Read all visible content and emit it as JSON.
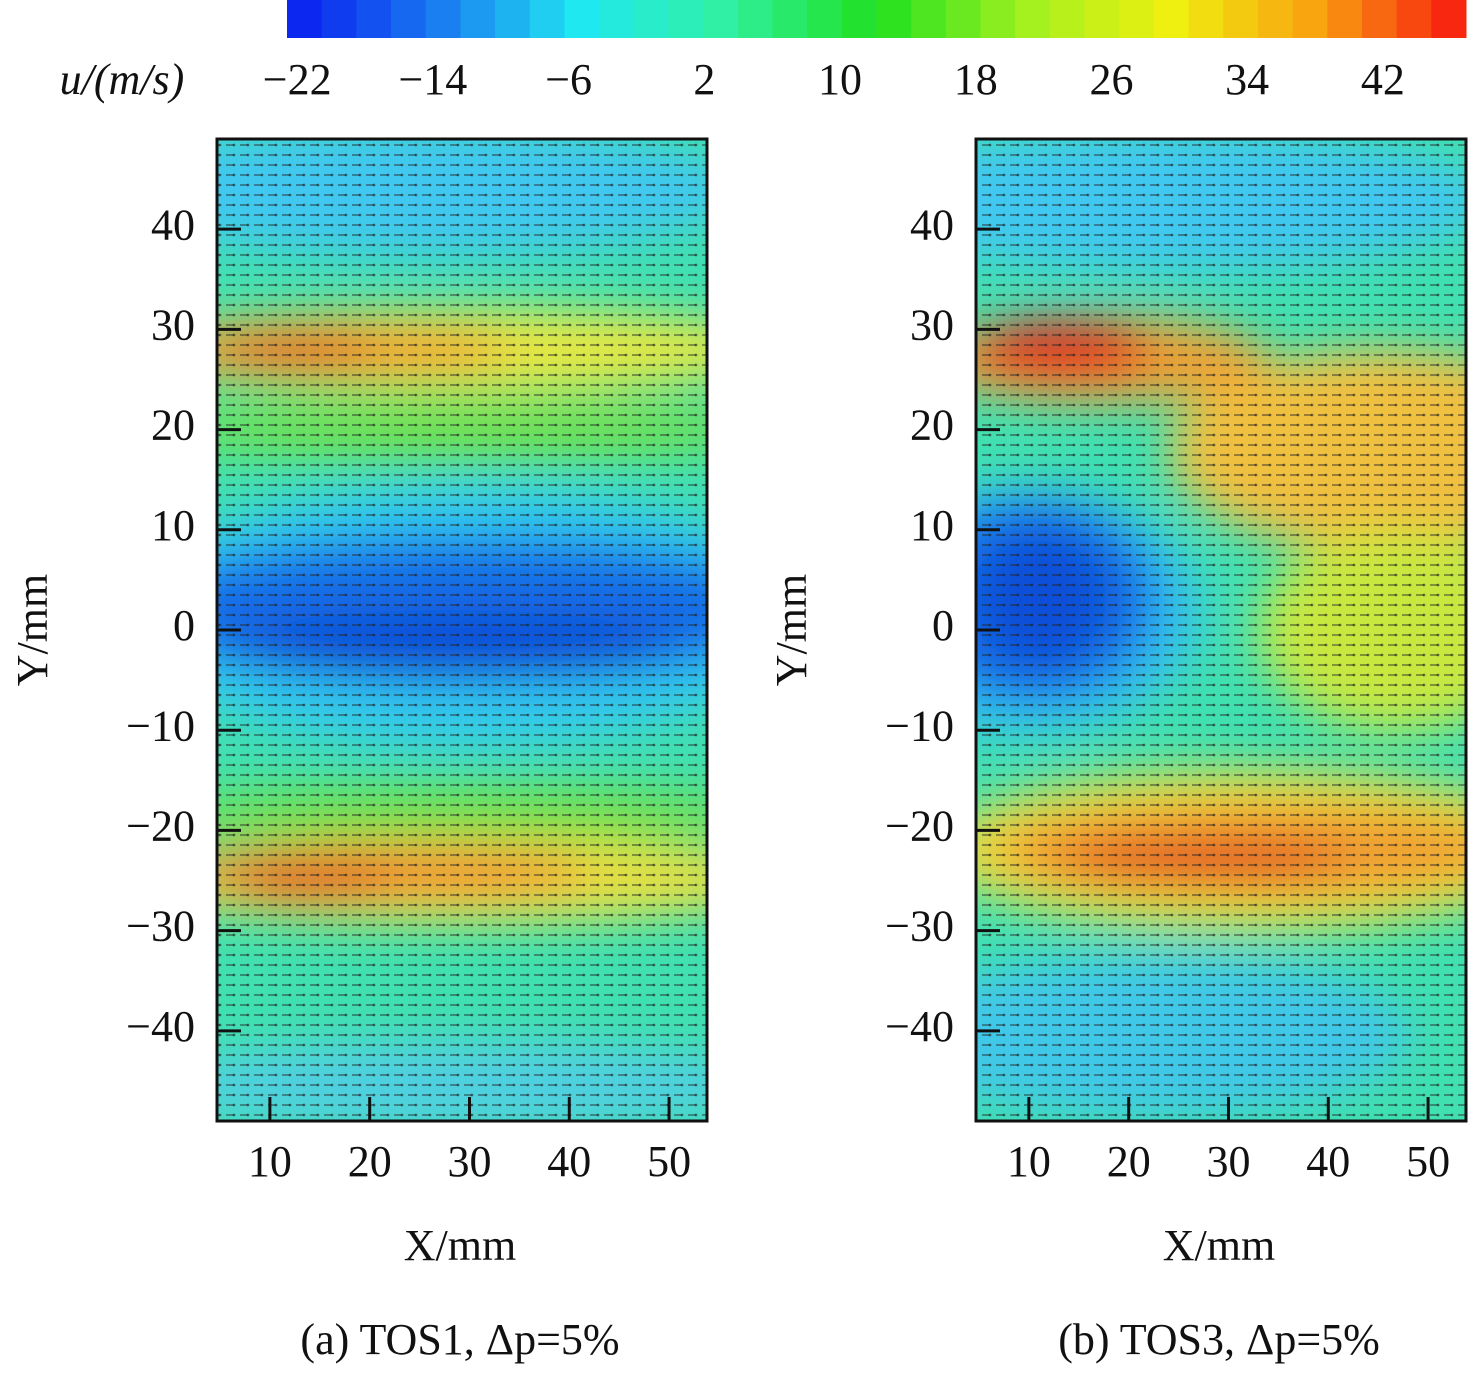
{
  "chart_data": {
    "type": "contour",
    "colorbar": {
      "label": "u/(m/s)",
      "clim": [
        -22.6,
        46.9
      ],
      "ticks": [
        {
          "value": -22,
          "label": "−22"
        },
        {
          "value": -14,
          "label": "−14"
        },
        {
          "value": -6,
          "label": "−6"
        },
        2,
        10,
        18,
        26,
        34,
        42
      ],
      "colormap": [
        "#0a1cf0",
        "#1a78f0",
        "#20e8f0",
        "#30f0a0",
        "#20e020",
        "#a0f020",
        "#f0f010",
        "#f8a010",
        "#f81810"
      ]
    },
    "panels": [
      {
        "caption": "(a) TOS1, Δp=5%",
        "xlabel": "X/mm",
        "ylabel": "Y/mm",
        "xlim": [
          4.7,
          53.8
        ],
        "ylim": [
          -49,
          49
        ],
        "xticks": [
          10,
          20,
          30,
          40,
          50
        ],
        "yticks": [
          {
            "value": -40,
            "label": "−40"
          },
          {
            "value": -30,
            "label": "−30"
          },
          {
            "value": -20,
            "label": "−20"
          },
          {
            "value": -10,
            "label": "−10"
          },
          0,
          10,
          20,
          30,
          40
        ]
      },
      {
        "caption": "(b) TOS3, Δp=5%",
        "xlabel": "X/mm",
        "ylabel": "Y/mm",
        "xlim": [
          4.7,
          53.8
        ],
        "ylim": [
          -49,
          49
        ],
        "xticks": [
          10,
          20,
          30,
          40,
          50
        ],
        "yticks": [
          {
            "value": -40,
            "label": "−40"
          },
          {
            "value": -30,
            "label": "−30"
          },
          {
            "value": -20,
            "label": "−20"
          },
          {
            "value": -10,
            "label": "−10"
          },
          0,
          10,
          20,
          30,
          40
        ]
      }
    ]
  }
}
